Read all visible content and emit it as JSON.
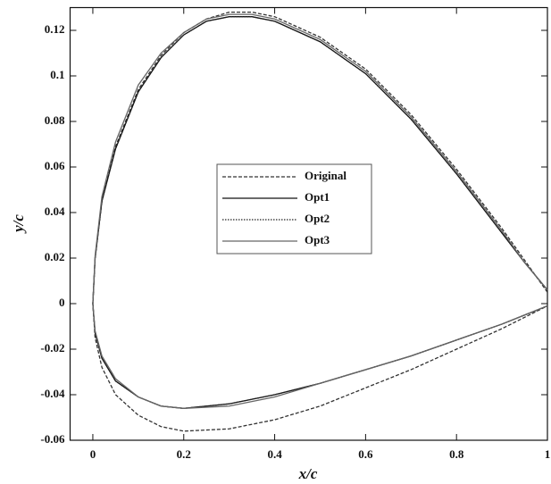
{
  "chart_data": {
    "type": "line",
    "x_label": "x/c",
    "y_label": "y/c",
    "x": [
      1,
      0.95,
      0.9,
      0.8,
      0.7,
      0.6,
      0.5,
      0.4,
      0.35,
      0.3,
      0.25,
      0.2,
      0.15,
      0.1,
      0.05,
      0.02,
      0.005,
      0,
      0.005,
      0.02,
      0.05,
      0.1,
      0.15,
      0.2,
      0.3,
      0.4,
      0.5,
      0.6,
      0.7,
      0.8,
      0.9,
      0.95,
      1
    ],
    "series": [
      {
        "name": "Original",
        "color": "#333333",
        "dash": "4,2",
        "values": [
          0.005,
          0.019,
          0.033,
          0.059,
          0.083,
          0.103,
          0.117,
          0.126,
          0.128,
          0.128,
          0.125,
          0.119,
          0.109,
          0.094,
          0.069,
          0.045,
          0.02,
          0,
          -0.015,
          -0.028,
          -0.04,
          -0.049,
          -0.054,
          -0.056,
          -0.055,
          -0.051,
          -0.045,
          -0.037,
          -0.029,
          -0.02,
          -0.011,
          -0.006,
          -0.001
        ]
      },
      {
        "name": "Opt1",
        "color": "#111111",
        "dash": "none",
        "values": [
          0.006,
          0.018,
          0.031,
          0.057,
          0.081,
          0.101,
          0.115,
          0.124,
          0.126,
          0.126,
          0.124,
          0.118,
          0.108,
          0.093,
          0.068,
          0.045,
          0.02,
          0,
          -0.013,
          -0.024,
          -0.034,
          -0.041,
          -0.045,
          -0.046,
          -0.044,
          -0.04,
          -0.035,
          -0.029,
          -0.023,
          -0.016,
          -0.009,
          -0.005,
          -0.001
        ]
      },
      {
        "name": "Opt2",
        "color": "#222222",
        "dash": "1.5,1.5",
        "values": [
          0.006,
          0.018,
          0.031,
          0.057,
          0.081,
          0.101,
          0.115,
          0.124,
          0.126,
          0.126,
          0.124,
          0.118,
          0.108,
          0.093,
          0.068,
          0.045,
          0.02,
          0,
          -0.013,
          -0.024,
          -0.034,
          -0.041,
          -0.045,
          -0.046,
          -0.044,
          -0.04,
          -0.035,
          -0.029,
          -0.023,
          -0.016,
          -0.009,
          -0.005,
          -0.001
        ]
      },
      {
        "name": "Opt3",
        "color": "#666666",
        "dash": "none",
        "values": [
          0.006,
          0.018,
          0.032,
          0.058,
          0.082,
          0.102,
          0.116,
          0.125,
          0.127,
          0.127,
          0.125,
          0.119,
          0.11,
          0.096,
          0.071,
          0.047,
          0.021,
          0,
          -0.012,
          -0.023,
          -0.033,
          -0.041,
          -0.045,
          -0.046,
          -0.045,
          -0.041,
          -0.035,
          -0.029,
          -0.023,
          -0.016,
          -0.009,
          -0.005,
          -0.001
        ]
      }
    ],
    "xlim": [
      -0.05,
      1
    ],
    "xticks": [
      0,
      0.2,
      0.4,
      0.6,
      0.8,
      1
    ],
    "ylim": [
      -0.06,
      0.13
    ],
    "yticks": [
      -0.06,
      -0.04,
      -0.02,
      0,
      0.02,
      0.04,
      0.06,
      0.08,
      0.1,
      0.12
    ],
    "grid": false,
    "legend": "center"
  }
}
